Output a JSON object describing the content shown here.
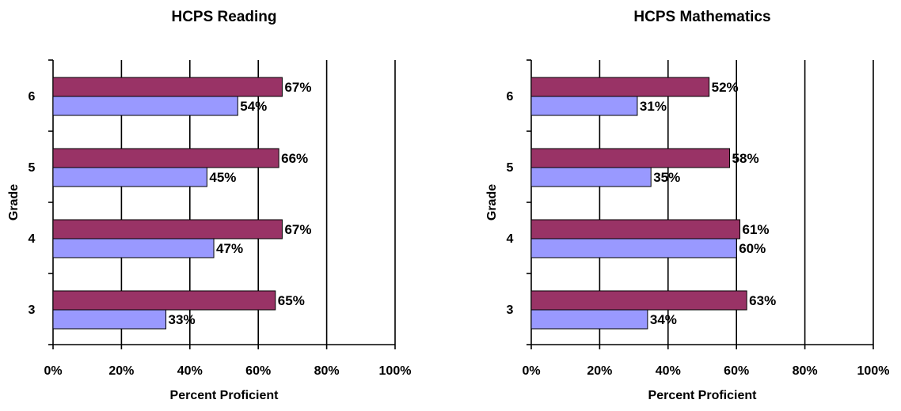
{
  "chart_data": [
    {
      "type": "bar",
      "orientation": "horizontal",
      "title": "HCPS Reading",
      "xlabel": "Percent Proficient",
      "ylabel": "Grade",
      "xlim": [
        0,
        100
      ],
      "x_ticks": [
        "0%",
        "20%",
        "40%",
        "60%",
        "80%",
        "100%"
      ],
      "categories": [
        "6",
        "5",
        "4",
        "3"
      ],
      "grid": true,
      "legend": "none",
      "series": [
        {
          "values": [
            67,
            66,
            67,
            65
          ],
          "labels": [
            "67%",
            "66%",
            "67%",
            "65%"
          ],
          "color": "#993366"
        },
        {
          "values": [
            54,
            45,
            47,
            33
          ],
          "labels": [
            "54%",
            "45%",
            "47%",
            "33%"
          ],
          "color": "#9999ff"
        }
      ]
    },
    {
      "type": "bar",
      "orientation": "horizontal",
      "title": "HCPS Mathematics",
      "xlabel": "Percent Proficient",
      "ylabel": "Grade",
      "xlim": [
        0,
        100
      ],
      "x_ticks": [
        "0%",
        "20%",
        "40%",
        "60%",
        "80%",
        "100%"
      ],
      "categories": [
        "6",
        "5",
        "4",
        "3"
      ],
      "grid": true,
      "legend": "none",
      "series": [
        {
          "values": [
            52,
            58,
            61,
            63
          ],
          "labels": [
            "52%",
            "58%",
            "61%",
            "63%"
          ],
          "color": "#993366"
        },
        {
          "values": [
            31,
            35,
            60,
            34
          ],
          "labels": [
            "31%",
            "35%",
            "60%",
            "34%"
          ],
          "color": "#9999ff"
        }
      ]
    }
  ]
}
